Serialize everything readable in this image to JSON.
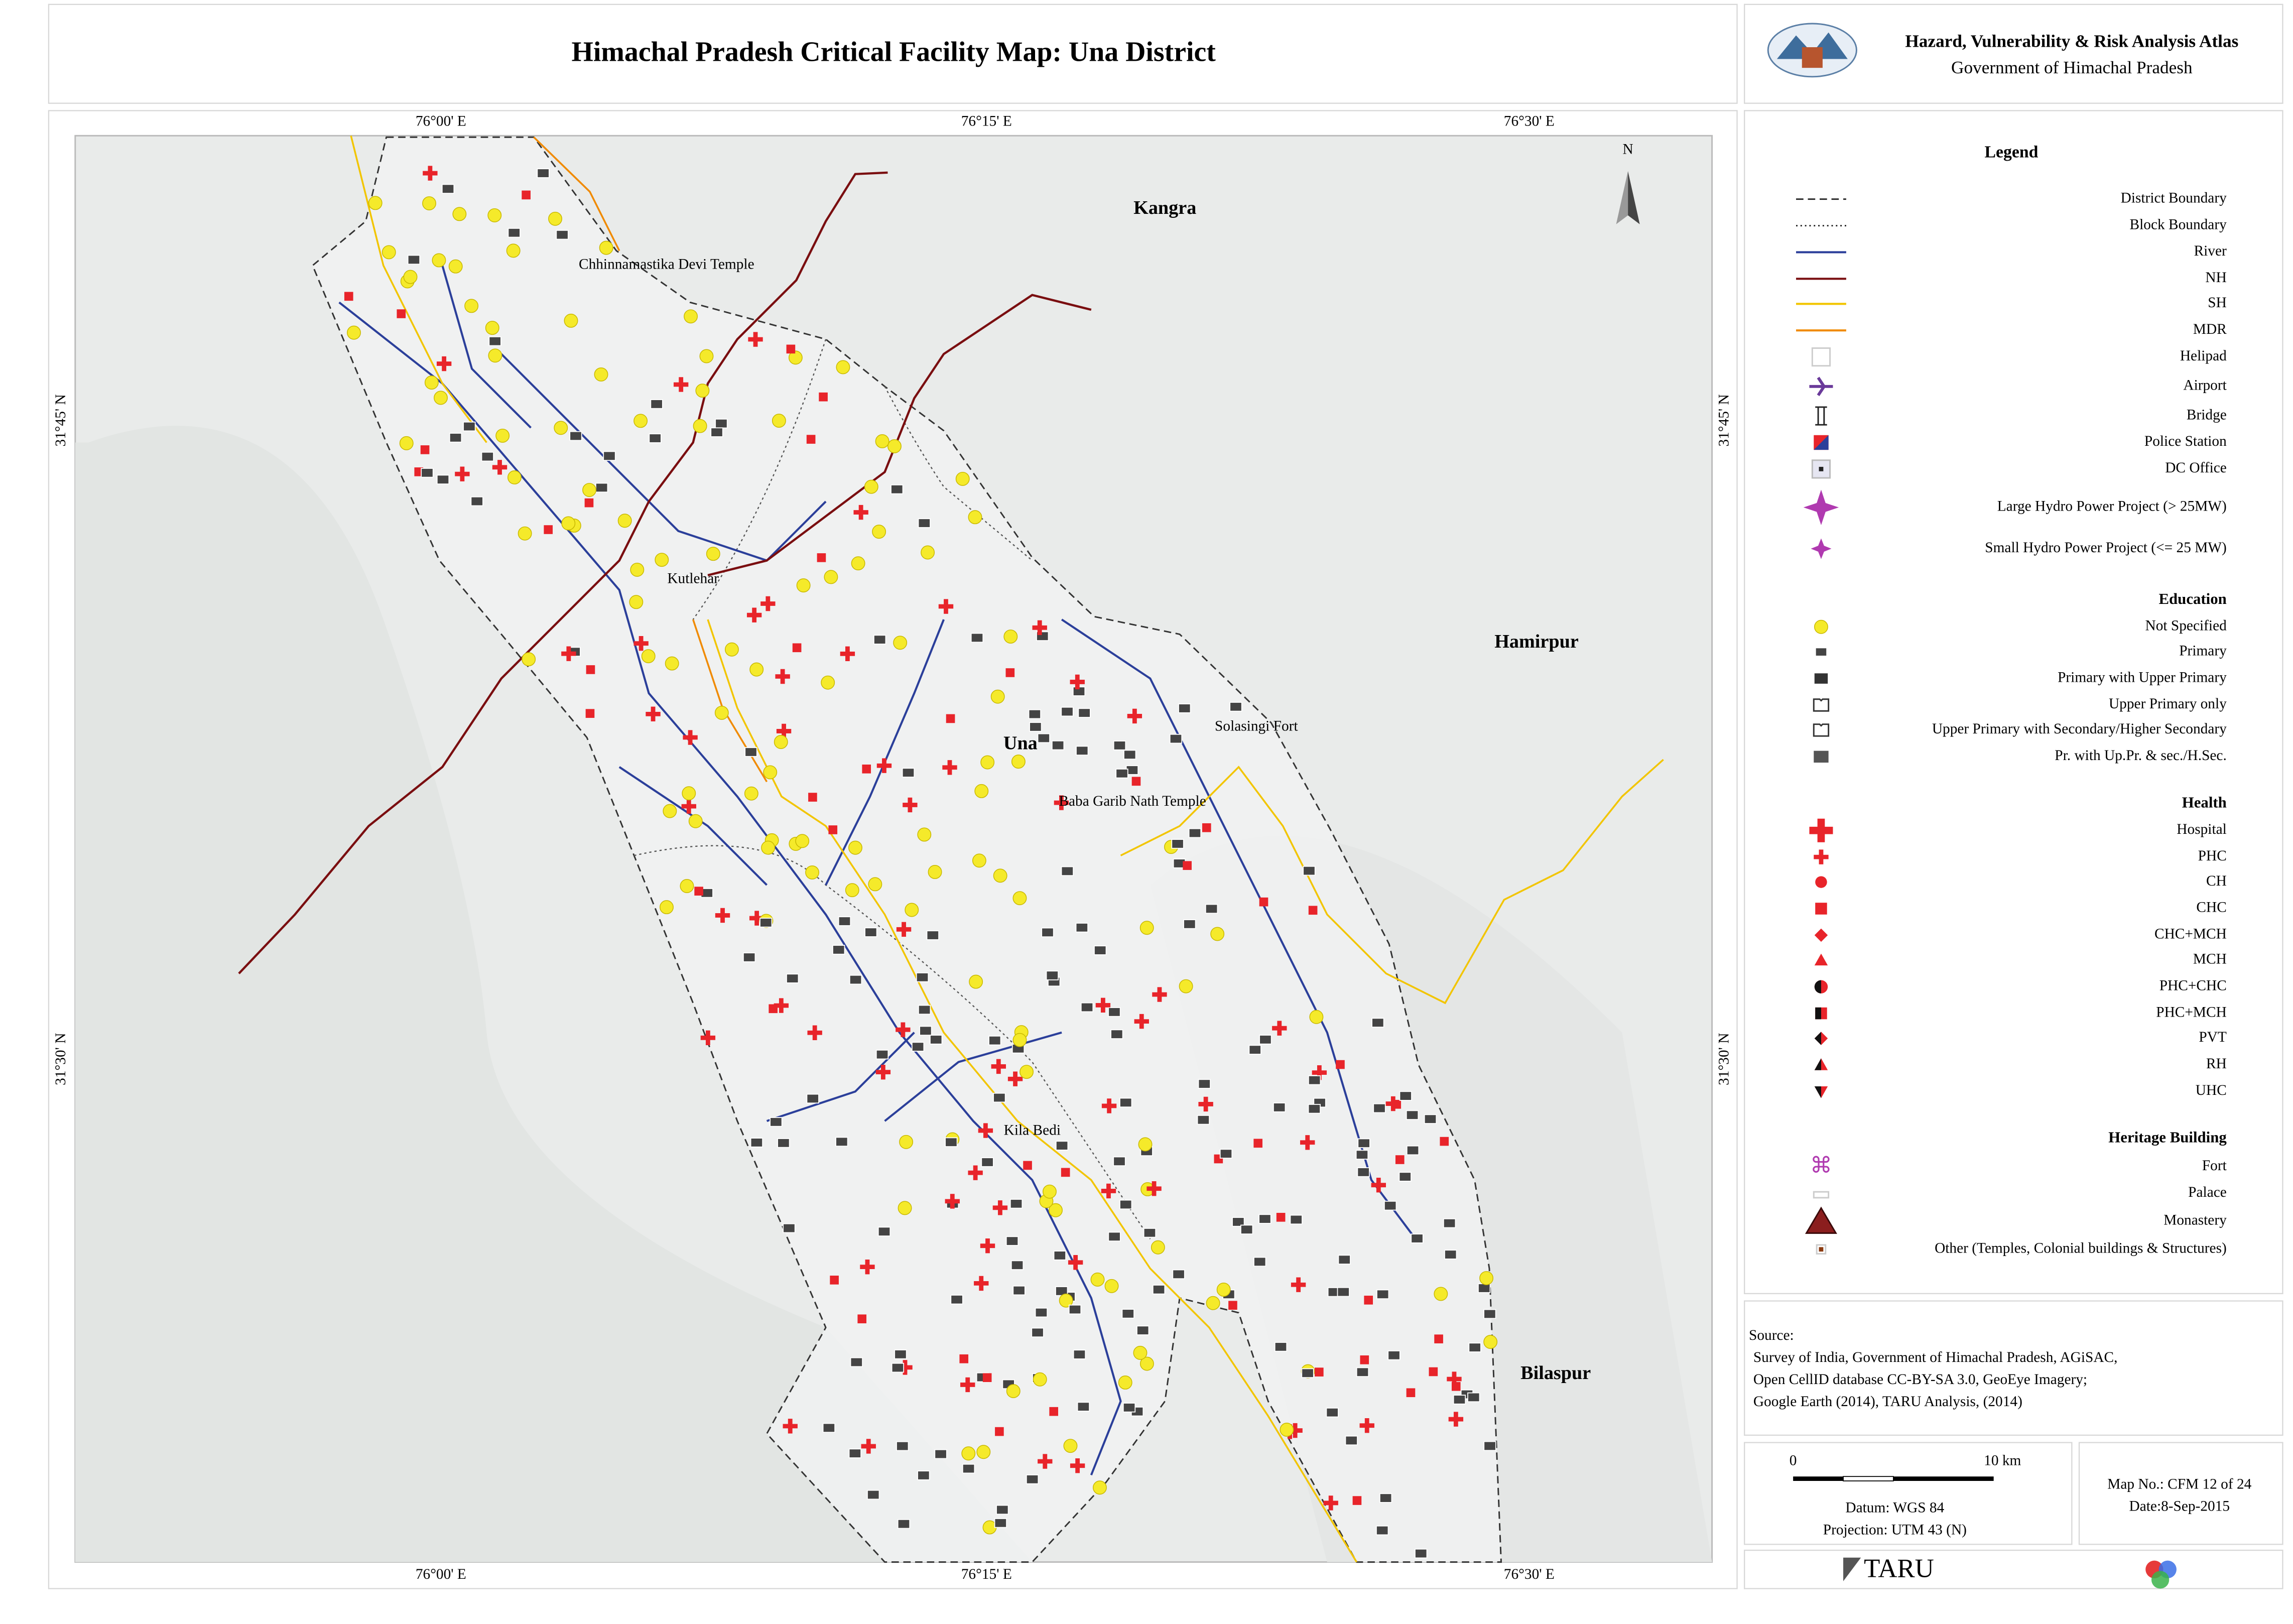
{
  "header": {
    "title": "Himachal Pradesh Critical Facility Map: Una District",
    "atlas": "Hazard, Vulnerability & Risk Analysis Atlas",
    "government": "Government of Himachal Pradesh"
  },
  "map": {
    "top_lon_labels": [
      "76°00' E",
      "76°15' E",
      "76°30' E"
    ],
    "bottom_lon_labels": [
      "76°00' E",
      "76°15' E",
      "76°30' E"
    ],
    "left_lat_labels": [
      "31°45' N",
      "31°30' N"
    ],
    "right_lat_labels": [
      "31°45' N",
      "31°30' N"
    ],
    "north": "N",
    "places": [
      "Kangra",
      "Hamirpur",
      "Bilaspur",
      "Una",
      "Kutlehar",
      "Kila Bedi",
      "Chhinnamastika Devi Temple",
      "Solasingi Fort",
      "Baba Garib Nath Temple"
    ]
  },
  "legend": {
    "title": "Legend",
    "general": [
      "District Boundary",
      "Block Boundary",
      "River",
      "NH",
      "SH",
      "MDR",
      "Helipad",
      "Airport",
      "Bridge",
      "Police Station",
      "DC Office",
      "Large Hydro Power Project (> 25MW)",
      "Small Hydro Power Project (<= 25 MW)"
    ],
    "education": {
      "title": "Education",
      "items": [
        "Not Specified",
        "Primary",
        "Primary with Upper Primary",
        "Upper Primary only",
        "Upper Primary with Secondary/Higher Secondary",
        "Pr. with Up.Pr. & sec./H.Sec."
      ]
    },
    "health": {
      "title": "Health",
      "items": [
        "Hospital",
        "PHC",
        "CH",
        "CHC",
        "CHC+MCH",
        "MCH",
        "PHC+CHC",
        "PHC+MCH",
        "PVT",
        "RH",
        "UHC"
      ]
    },
    "heritage": {
      "title": "Heritage Building",
      "items": [
        "Fort",
        "Palace",
        "Monastery",
        "Other (Temples, Colonial buildings & Structures)"
      ]
    }
  },
  "source": {
    "title": "Source:",
    "lines": [
      "Survey of India, Government of Himachal Pradesh, AGiSAC,",
      "Open CellID database CC-BY-SA 3.0, GeoEye Imagery;",
      "Google Earth (2014), TARU Analysis, (2014)"
    ]
  },
  "scale": {
    "start": "0",
    "end": "10 km",
    "datum": "Datum: WGS 84",
    "projection": "Projection: UTM 43 (N)"
  },
  "map_info": {
    "map_no": "Map No.: CFM 12 of 24",
    "date": "Date:8-Sep-2015"
  },
  "footer": {
    "logo": "TARU"
  }
}
